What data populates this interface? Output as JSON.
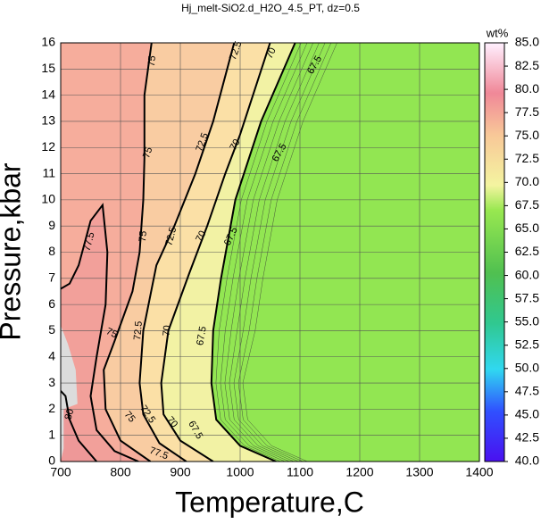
{
  "chart_data": {
    "type": "contour",
    "title": "Hj_melt-SiO2.d_H2O_4.5_PT, dz=0.5",
    "xlabel": "Temperature,C",
    "ylabel": "Pressure,kbar",
    "xlim": [
      700,
      1400
    ],
    "ylim": [
      0,
      16
    ],
    "xticks": [
      700,
      800,
      900,
      1000,
      1100,
      1200,
      1300,
      1400
    ],
    "yticks": [
      0,
      1,
      2,
      3,
      4,
      5,
      6,
      7,
      8,
      9,
      10,
      11,
      12,
      13,
      14,
      15,
      16
    ],
    "grid": true,
    "colorbar": {
      "label": "wt%",
      "lim": [
        40,
        85
      ],
      "ticks": [
        {
          "value": 40,
          "label": "40.0"
        },
        {
          "value": 42.5,
          "label": "42.5"
        },
        {
          "value": 45,
          "label": "45.0"
        },
        {
          "value": 47.5,
          "label": "47.5"
        },
        {
          "value": 50,
          "label": "50.0"
        },
        {
          "value": 52.5,
          "label": "52.5"
        },
        {
          "value": 55,
          "label": "55.0"
        },
        {
          "value": 57.5,
          "label": "57.5"
        },
        {
          "value": 60,
          "label": "60.0"
        },
        {
          "value": 62.5,
          "label": "62.5"
        },
        {
          "value": 65,
          "label": "65.0"
        },
        {
          "value": 67.5,
          "label": "67.5"
        },
        {
          "value": 70,
          "label": "70.0"
        },
        {
          "value": 72.5,
          "label": "72.5"
        },
        {
          "value": 75,
          "label": "75.0"
        },
        {
          "value": 77.5,
          "label": "77.5"
        },
        {
          "value": 80,
          "label": "80.0"
        },
        {
          "value": 82.5,
          "label": "82.5"
        },
        {
          "value": 85,
          "label": "85.0"
        }
      ]
    },
    "contours": [
      {
        "level": 67.5
      },
      {
        "level": 70
      },
      {
        "level": 72.5
      },
      {
        "level": 75
      },
      {
        "level": 77.5
      },
      {
        "level": 80
      }
    ]
  }
}
